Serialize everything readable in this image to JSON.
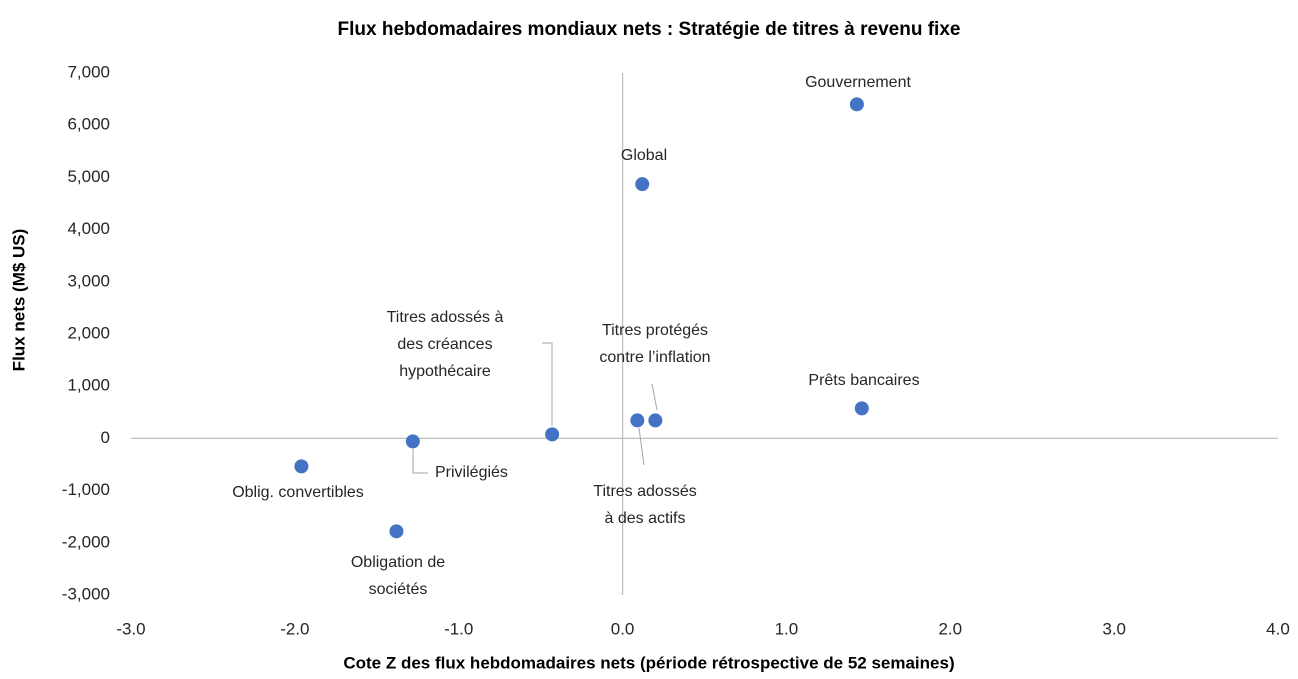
{
  "chart_data": {
    "type": "scatter",
    "title": "Flux hebdomadaires mondiaux nets : Stratégie de titres à revenu fixe",
    "xlabel": "Cote Z des flux hebdomadaires nets (période rétrospective de 52 semaines)",
    "ylabel": "Flux nets (M$ US)",
    "color": "#4472c4",
    "x": [
      1.43,
      0.12,
      1.46,
      0.2,
      0.09,
      -0.43,
      -1.28,
      -1.96,
      -1.38
    ],
    "values": [
      6400,
      4870,
      575,
      345,
      345,
      77,
      -57,
      -536,
      -1780
    ],
    "labels": [
      [
        "Gouvernement"
      ],
      [
        "Global"
      ],
      [
        "Prêts bancaires"
      ],
      [
        "Titres protégés",
        "contre l’inflation"
      ],
      [
        "Titres adossés",
        "à des actifs"
      ],
      [
        "Titres adossés à",
        "des créances",
        "hypothécaire"
      ],
      [
        "Privilégiés"
      ],
      [
        "Oblig. convertibles"
      ],
      [
        "Obligation de",
        "sociétés"
      ]
    ],
    "xlim": [
      -3,
      4
    ],
    "xticks": [
      {
        "value": -3,
        "label": "-3.0"
      },
      {
        "value": -2,
        "label": "-2.0"
      },
      {
        "value": -1,
        "label": "-1.0"
      },
      {
        "value": 0,
        "label": "0.0"
      },
      {
        "value": 1,
        "label": "1.0"
      },
      {
        "value": 2,
        "label": "2.0"
      },
      {
        "value": 3,
        "label": "3.0"
      },
      {
        "value": 4,
        "label": "4.0"
      }
    ],
    "ylim": [
      -3000,
      7000
    ],
    "yticks": [
      {
        "value": -3000,
        "label": "-3,000"
      },
      {
        "value": -2000,
        "label": "-2,000"
      },
      {
        "value": -1000,
        "label": "-1,000"
      },
      0,
      {
        "value": 1000,
        "label": "1,000"
      },
      {
        "value": 2000,
        "label": "2,000"
      },
      {
        "value": 3000,
        "label": "3,000"
      },
      {
        "value": 4000,
        "label": "4,000"
      },
      {
        "value": 5000,
        "label": "5,000"
      },
      {
        "value": 6000,
        "label": "6,000"
      },
      {
        "value": 7000,
        "label": "7,000"
      }
    ],
    "grid": false
  }
}
